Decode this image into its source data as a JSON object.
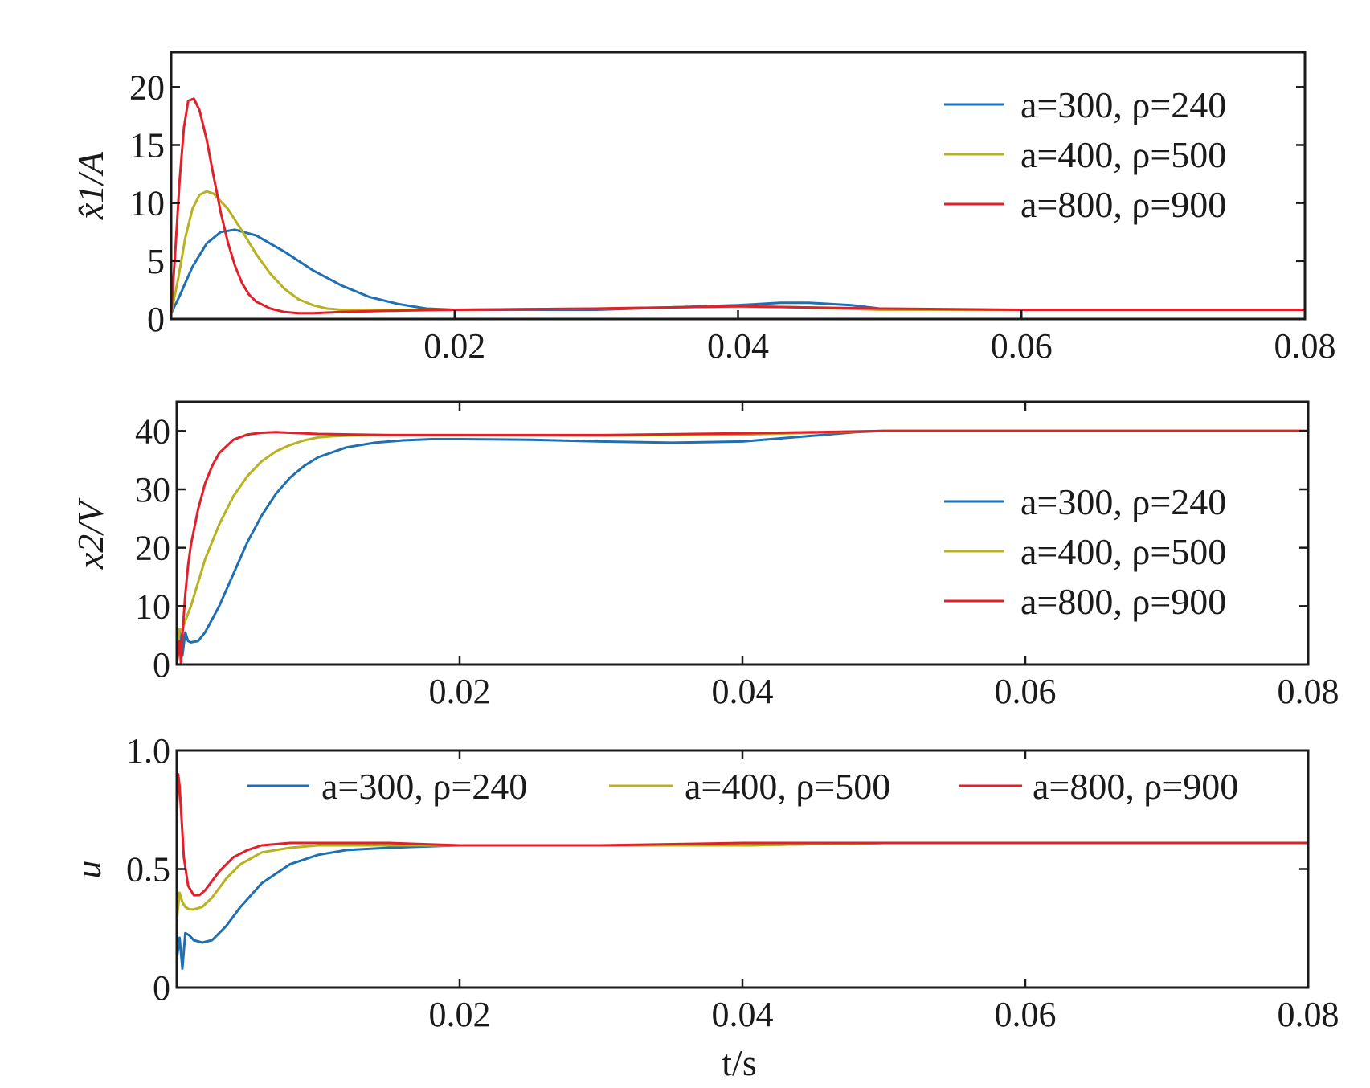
{
  "chart_data": [
    {
      "type": "line",
      "ylabel": "x̂1/A",
      "xlim": [
        0,
        0.08
      ],
      "ylim": [
        0,
        23
      ],
      "xticks": [
        "0.02",
        "0.04",
        "0.06",
        "0.08"
      ],
      "yticks": [
        "0",
        "5",
        "10",
        "15",
        "20"
      ],
      "legend_position": "top-right",
      "series": [
        {
          "name": "a=300, ρ=240",
          "color": "#1f6fb4",
          "x": [
            0,
            0.0006,
            0.0015,
            0.0025,
            0.0035,
            0.0045,
            0.006,
            0.008,
            0.01,
            0.012,
            0.014,
            0.016,
            0.018,
            0.02,
            0.025,
            0.03,
            0.035,
            0.04,
            0.043,
            0.045,
            0.048,
            0.05,
            0.055,
            0.06,
            0.07,
            0.08
          ],
          "y": [
            0.5,
            2.0,
            4.5,
            6.5,
            7.5,
            7.7,
            7.2,
            5.8,
            4.2,
            2.9,
            1.9,
            1.3,
            0.9,
            0.8,
            0.8,
            0.8,
            1.0,
            1.2,
            1.4,
            1.4,
            1.2,
            0.9,
            0.8,
            0.8,
            0.8,
            0.8
          ]
        },
        {
          "name": "a=400, ρ=500",
          "color": "#b8b21f",
          "x": [
            0,
            0.0005,
            0.001,
            0.0015,
            0.002,
            0.0025,
            0.003,
            0.004,
            0.005,
            0.006,
            0.007,
            0.008,
            0.009,
            0.01,
            0.011,
            0.012,
            0.014,
            0.016,
            0.02,
            0.03,
            0.04,
            0.045,
            0.05,
            0.06,
            0.08
          ],
          "y": [
            0.5,
            3.5,
            7.0,
            9.5,
            10.7,
            11.0,
            10.8,
            9.5,
            7.6,
            5.6,
            3.9,
            2.6,
            1.7,
            1.2,
            0.9,
            0.8,
            0.8,
            0.8,
            0.8,
            0.9,
            1.1,
            1.0,
            0.8,
            0.8,
            0.8
          ]
        },
        {
          "name": "a=800, ρ=900",
          "color": "#e0202a",
          "x": [
            0,
            0.0003,
            0.0006,
            0.0009,
            0.0012,
            0.0016,
            0.002,
            0.0025,
            0.003,
            0.0035,
            0.004,
            0.0045,
            0.005,
            0.0055,
            0.006,
            0.007,
            0.008,
            0.009,
            0.01,
            0.012,
            0.015,
            0.02,
            0.03,
            0.04,
            0.045,
            0.05,
            0.06,
            0.08
          ],
          "y": [
            0.5,
            6.0,
            12.0,
            16.5,
            18.8,
            19.0,
            18.0,
            15.5,
            12.3,
            9.2,
            6.6,
            4.6,
            3.1,
            2.1,
            1.5,
            0.9,
            0.6,
            0.5,
            0.5,
            0.6,
            0.7,
            0.8,
            0.9,
            1.1,
            1.0,
            0.9,
            0.8,
            0.8
          ]
        }
      ]
    },
    {
      "type": "line",
      "ylabel": "x2/V",
      "xlim": [
        0,
        0.08
      ],
      "ylim": [
        0,
        45
      ],
      "xticks": [
        "0.02",
        "0.04",
        "0.06",
        "0.08"
      ],
      "yticks": [
        "0",
        "10",
        "20",
        "30",
        "40"
      ],
      "legend_position": "center-right",
      "series": [
        {
          "name": "a=300, ρ=240",
          "color": "#1f6fb4",
          "x": [
            0,
            0.0002,
            0.0004,
            0.0006,
            0.0008,
            0.001,
            0.0015,
            0.002,
            0.003,
            0.004,
            0.005,
            0.006,
            0.007,
            0.008,
            0.009,
            0.01,
            0.012,
            0.014,
            0.016,
            0.018,
            0.02,
            0.025,
            0.03,
            0.035,
            0.04,
            0.044,
            0.048,
            0.05,
            0.06,
            0.07,
            0.08
          ],
          "y": [
            0,
            6.0,
            1.5,
            5.5,
            4.0,
            3.8,
            4.0,
            5.5,
            10.0,
            15.5,
            21.0,
            25.5,
            29.2,
            32.0,
            34.0,
            35.5,
            37.2,
            38.0,
            38.4,
            38.6,
            38.6,
            38.5,
            38.2,
            38.0,
            38.2,
            39.0,
            39.8,
            40.0,
            40.0,
            40.0,
            40.0
          ]
        },
        {
          "name": "a=400, ρ=500",
          "color": "#b8b21f",
          "x": [
            0,
            0.0002,
            0.0004,
            0.0006,
            0.001,
            0.0015,
            0.002,
            0.003,
            0.004,
            0.005,
            0.006,
            0.007,
            0.008,
            0.009,
            0.01,
            0.011,
            0.012,
            0.014,
            0.02,
            0.03,
            0.04,
            0.045,
            0.05,
            0.06,
            0.08
          ],
          "y": [
            0,
            6.0,
            6.0,
            7.5,
            10.0,
            14.0,
            18.0,
            24.0,
            28.8,
            32.3,
            34.8,
            36.5,
            37.6,
            38.4,
            38.9,
            39.1,
            39.2,
            39.3,
            39.3,
            39.2,
            39.4,
            39.7,
            40.0,
            40.0,
            40.0
          ]
        },
        {
          "name": "a=800, ρ=900",
          "color": "#e0202a",
          "x": [
            0,
            0.0002,
            0.0003,
            0.0004,
            0.0006,
            0.0008,
            0.001,
            0.0015,
            0.002,
            0.0025,
            0.003,
            0.004,
            0.005,
            0.006,
            0.007,
            0.008,
            0.01,
            0.015,
            0.02,
            0.03,
            0.04,
            0.045,
            0.05,
            0.06,
            0.08
          ],
          "y": [
            0,
            4.0,
            0.0,
            5.0,
            12.0,
            17.0,
            20.5,
            26.5,
            31.0,
            34.0,
            36.2,
            38.5,
            39.4,
            39.7,
            39.8,
            39.7,
            39.5,
            39.3,
            39.3,
            39.3,
            39.6,
            39.8,
            40.0,
            40.0,
            40.0
          ]
        }
      ]
    },
    {
      "type": "line",
      "xlabel": "t/s",
      "ylabel": "u",
      "xlim": [
        0,
        0.08
      ],
      "ylim": [
        0,
        1.0
      ],
      "xticks": [
        "0.02",
        "0.04",
        "0.06",
        "0.08"
      ],
      "yticks": [
        "0",
        "0.5",
        "1.0"
      ],
      "legend_position": "top",
      "series": [
        {
          "name": "a=300, ρ=240",
          "color": "#1f6fb4",
          "x": [
            0,
            0.0002,
            0.0004,
            0.0006,
            0.0009,
            0.0012,
            0.0018,
            0.0025,
            0.0035,
            0.0045,
            0.006,
            0.008,
            0.01,
            0.012,
            0.015,
            0.02,
            0.03,
            0.04,
            0.05,
            0.06,
            0.07,
            0.08
          ],
          "y": [
            0.12,
            0.21,
            0.08,
            0.23,
            0.22,
            0.2,
            0.19,
            0.2,
            0.26,
            0.34,
            0.44,
            0.52,
            0.56,
            0.58,
            0.59,
            0.6,
            0.6,
            0.6,
            0.61,
            0.61,
            0.61,
            0.61
          ]
        },
        {
          "name": "a=400, ρ=500",
          "color": "#b8b21f",
          "x": [
            0,
            0.0002,
            0.0004,
            0.0006,
            0.0009,
            0.0012,
            0.0018,
            0.0025,
            0.0035,
            0.0045,
            0.006,
            0.008,
            0.01,
            0.012,
            0.015,
            0.02,
            0.03,
            0.04,
            0.05,
            0.06,
            0.08
          ],
          "y": [
            0.28,
            0.4,
            0.36,
            0.34,
            0.33,
            0.33,
            0.34,
            0.38,
            0.46,
            0.52,
            0.57,
            0.59,
            0.6,
            0.6,
            0.6,
            0.6,
            0.6,
            0.6,
            0.61,
            0.61,
            0.61
          ]
        },
        {
          "name": "a=800, ρ=900",
          "color": "#e0202a",
          "x": [
            0,
            0.0001,
            0.0002,
            0.0003,
            0.0005,
            0.0008,
            0.0012,
            0.0016,
            0.002,
            0.0025,
            0.003,
            0.004,
            0.005,
            0.006,
            0.007,
            0.008,
            0.01,
            0.015,
            0.02,
            0.03,
            0.04,
            0.05,
            0.06,
            0.08
          ],
          "y": [
            0.7,
            0.9,
            0.85,
            0.75,
            0.55,
            0.43,
            0.39,
            0.39,
            0.41,
            0.45,
            0.49,
            0.55,
            0.58,
            0.6,
            0.605,
            0.61,
            0.61,
            0.61,
            0.6,
            0.6,
            0.61,
            0.61,
            0.61,
            0.61
          ]
        }
      ]
    }
  ]
}
